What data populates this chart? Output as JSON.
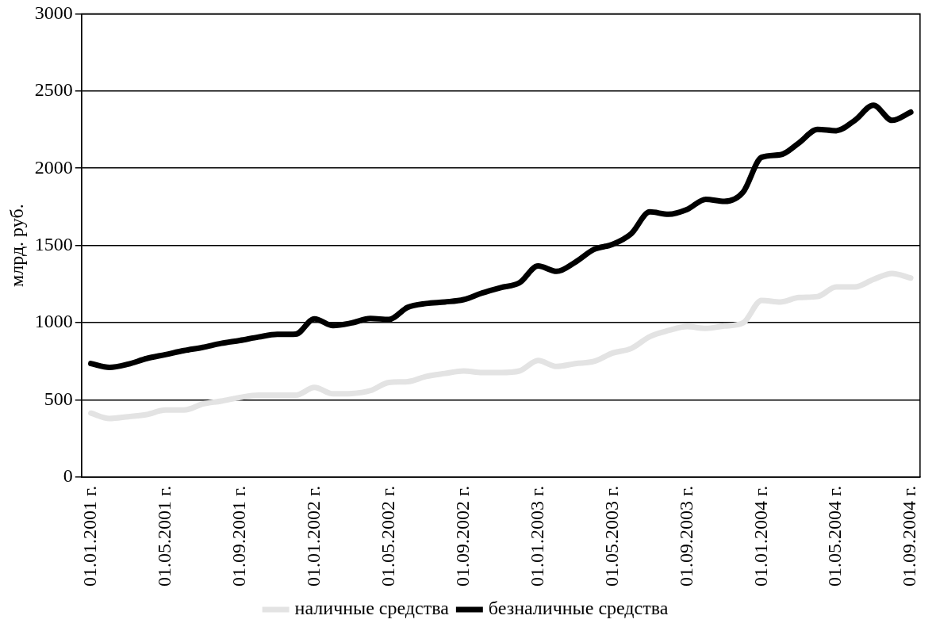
{
  "chart_data": {
    "type": "line",
    "ylabel": "млрд. руб.",
    "categories": [
      "01.01.2001 г.",
      null,
      null,
      null,
      "01.05.2001 г.",
      null,
      null,
      null,
      "01.09.2001 г.",
      null,
      null,
      null,
      "01.01.2002 г.",
      null,
      null,
      null,
      "01.05.2002 г.",
      null,
      null,
      null,
      "01.09.2002 г.",
      null,
      null,
      null,
      "01.01.2003 г.",
      null,
      null,
      null,
      "01.05.2003 г.",
      null,
      null,
      null,
      "01.09.2003 г.",
      null,
      null,
      null,
      "01.01.2004 г.",
      null,
      null,
      null,
      "01.05.2004 г.",
      null,
      null,
      null,
      "01.09.2004 г."
    ],
    "series": [
      {
        "name": "наличные средства",
        "color": "#e3e3e3",
        "values": [
          414,
          379,
          391,
          405,
          434,
          434,
          473,
          492,
          516,
          531,
          531,
          531,
          580,
          539,
          541,
          560,
          613,
          618,
          652,
          671,
          687,
          677,
          677,
          687,
          755,
          716,
          735,
          749,
          803,
          833,
          910,
          949,
          974,
          963,
          978,
          998,
          1144,
          1134,
          1163,
          1169,
          1231,
          1231,
          1280,
          1319,
          1289
        ]
      },
      {
        "name": "безналичные средства",
        "color": "#000000",
        "values": [
          735,
          710,
          731,
          768,
          793,
          819,
          840,
          866,
          885,
          907,
          924,
          926,
          1025,
          981,
          998,
          1027,
          1021,
          1099,
          1124,
          1134,
          1149,
          1192,
          1227,
          1258,
          1367,
          1332,
          1392,
          1474,
          1507,
          1576,
          1717,
          1702,
          1733,
          1799,
          1785,
          1844,
          2071,
          2087,
          2164,
          2252,
          2243,
          2310,
          2408,
          2310,
          2363
        ]
      }
    ],
    "ylim": [
      0,
      3000
    ],
    "yticks": [
      0,
      500,
      1000,
      1500,
      2000,
      2500,
      3000
    ],
    "grid": "y",
    "legend": "bottom",
    "marker": "none",
    "line_style": "solid"
  }
}
